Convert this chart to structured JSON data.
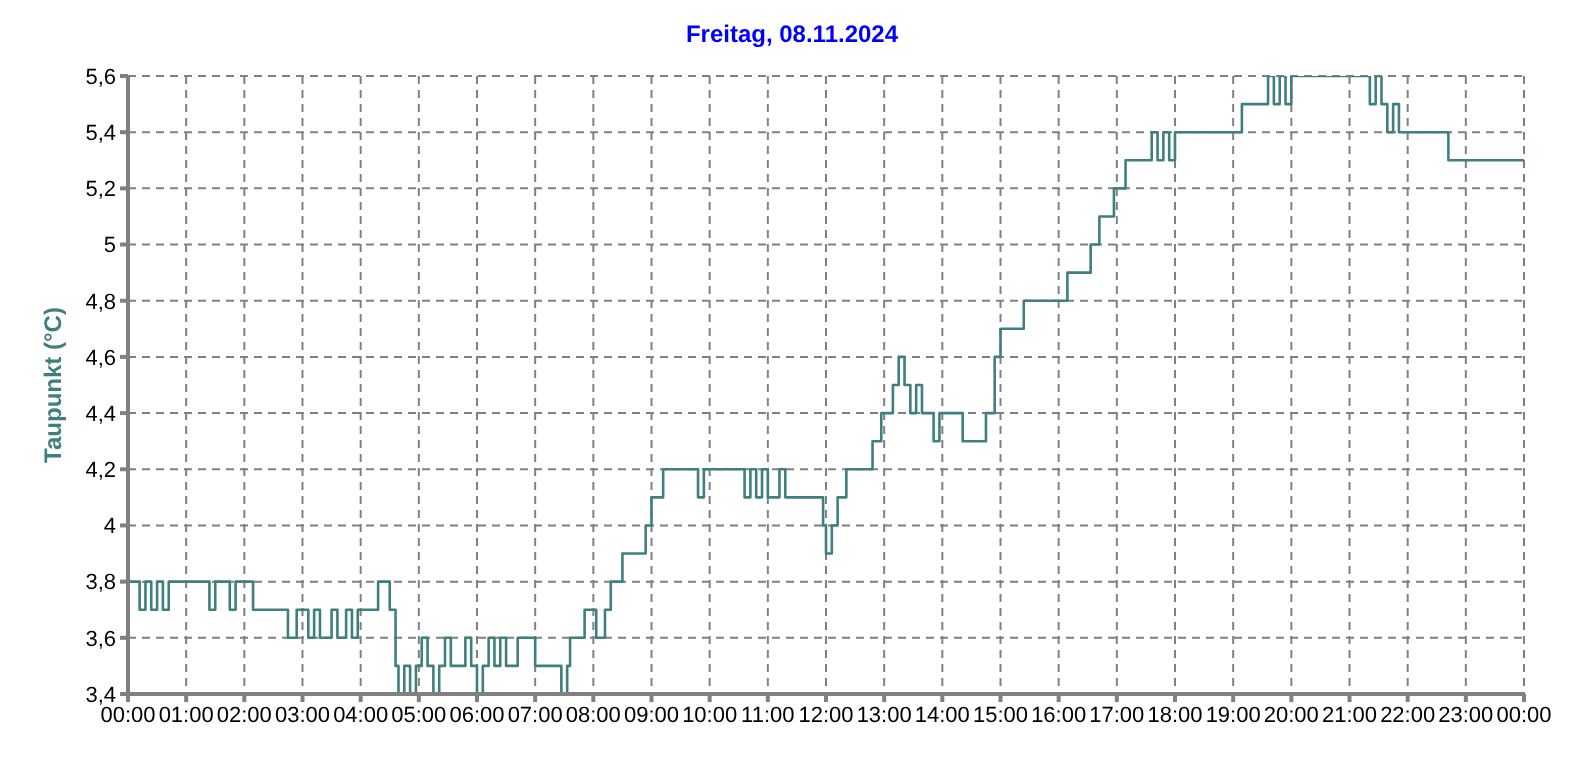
{
  "chart_data": {
    "type": "step",
    "title": "Freitag, 08.11.2024",
    "ylabel": "Taupunkt  (°C)",
    "x": [
      0,
      0.2,
      0.3,
      0.4,
      0.5,
      0.6,
      0.7,
      1.4,
      1.5,
      1.75,
      1.85,
      2.15,
      2.75,
      2.9,
      3.1,
      3.2,
      3.3,
      3.5,
      3.6,
      3.75,
      3.85,
      3.95,
      4.3,
      4.5,
      4.6,
      4.65,
      4.75,
      4.85,
      4.95,
      5.05,
      5.15,
      5.25,
      5.35,
      5.45,
      5.55,
      5.8,
      5.9,
      6.0,
      6.1,
      6.2,
      6.3,
      6.4,
      6.5,
      6.7,
      7.0,
      7.45,
      7.55,
      7.6,
      7.85,
      8.05,
      8.2,
      8.3,
      8.5,
      8.9,
      9.0,
      9.2,
      9.8,
      9.9,
      10.6,
      10.7,
      10.8,
      10.9,
      11.0,
      11.2,
      11.3,
      11.95,
      12.0,
      12.1,
      12.2,
      12.35,
      12.8,
      12.95,
      13.15,
      13.25,
      13.35,
      13.45,
      13.55,
      13.65,
      13.85,
      13.95,
      14.35,
      14.75,
      14.9,
      15.0,
      15.4,
      16.15,
      16.55,
      16.7,
      16.95,
      17.15,
      17.6,
      17.7,
      17.8,
      17.9,
      18.0,
      19.15,
      19.6,
      19.7,
      19.8,
      19.9,
      20.0,
      21.35,
      21.45,
      21.55,
      21.65,
      21.75,
      21.85,
      22.7,
      24
    ],
    "series": [
      {
        "color": "#3f7f7f",
        "values": [
          3.8,
          3.7,
          3.8,
          3.7,
          3.8,
          3.7,
          3.8,
          3.7,
          3.8,
          3.7,
          3.8,
          3.7,
          3.6,
          3.7,
          3.6,
          3.7,
          3.6,
          3.7,
          3.6,
          3.7,
          3.6,
          3.7,
          3.8,
          3.7,
          3.5,
          3.4,
          3.5,
          3.4,
          3.5,
          3.6,
          3.5,
          3.4,
          3.5,
          3.6,
          3.5,
          3.6,
          3.5,
          3.4,
          3.5,
          3.6,
          3.5,
          3.6,
          3.5,
          3.6,
          3.5,
          3.4,
          3.5,
          3.6,
          3.7,
          3.6,
          3.7,
          3.8,
          3.9,
          4.0,
          4.1,
          4.2,
          4.1,
          4.2,
          4.1,
          4.2,
          4.1,
          4.2,
          4.1,
          4.2,
          4.1,
          4.0,
          3.9,
          4.0,
          4.1,
          4.2,
          4.3,
          4.4,
          4.5,
          4.6,
          4.5,
          4.4,
          4.5,
          4.4,
          4.3,
          4.4,
          4.3,
          4.4,
          4.6,
          4.7,
          4.8,
          4.9,
          5.0,
          5.1,
          5.2,
          5.3,
          5.4,
          5.3,
          5.4,
          5.3,
          5.4,
          5.5,
          5.6,
          5.5,
          5.6,
          5.5,
          5.6,
          5.5,
          5.6,
          5.5,
          5.4,
          5.5,
          5.4,
          5.3,
          5.3
        ]
      }
    ],
    "xlim": [
      0,
      24
    ],
    "xticks": [
      {
        "value": 0,
        "label": "00:00"
      },
      {
        "value": 1,
        "label": "01:00"
      },
      {
        "value": 2,
        "label": "02:00"
      },
      {
        "value": 3,
        "label": "03:00"
      },
      {
        "value": 4,
        "label": "04:00"
      },
      {
        "value": 5,
        "label": "05:00"
      },
      {
        "value": 6,
        "label": "06:00"
      },
      {
        "value": 7,
        "label": "07:00"
      },
      {
        "value": 8,
        "label": "08:00"
      },
      {
        "value": 9,
        "label": "09:00"
      },
      {
        "value": 10,
        "label": "10:00"
      },
      {
        "value": 11,
        "label": "11:00"
      },
      {
        "value": 12,
        "label": "12:00"
      },
      {
        "value": 13,
        "label": "13:00"
      },
      {
        "value": 14,
        "label": "14:00"
      },
      {
        "value": 15,
        "label": "15:00"
      },
      {
        "value": 16,
        "label": "16:00"
      },
      {
        "value": 17,
        "label": "17:00"
      },
      {
        "value": 18,
        "label": "18:00"
      },
      {
        "value": 19,
        "label": "19:00"
      },
      {
        "value": 20,
        "label": "20:00"
      },
      {
        "value": 21,
        "label": "21:00"
      },
      {
        "value": 22,
        "label": "22:00"
      },
      {
        "value": 23,
        "label": "23:00"
      },
      {
        "value": 24,
        "label": "00:00"
      }
    ],
    "ylim": [
      3.4,
      5.6
    ],
    "yticks": [
      {
        "value": 3.4,
        "label": "3,4"
      },
      {
        "value": 3.6,
        "label": "3,6"
      },
      {
        "value": 3.8,
        "label": "3,8"
      },
      {
        "value": 4,
        "label": "4"
      },
      {
        "value": 4.2,
        "label": "4,2"
      },
      {
        "value": 4.4,
        "label": "4,4"
      },
      {
        "value": 4.6,
        "label": "4,6"
      },
      {
        "value": 4.8,
        "label": "4,8"
      },
      {
        "value": 5,
        "label": "5"
      },
      {
        "value": 5.2,
        "label": "5,2"
      },
      {
        "value": 5.4,
        "label": "5,4"
      },
      {
        "value": 5.6,
        "label": "5,6"
      }
    ],
    "grid": true,
    "line_style": "solid",
    "marker": "none"
  }
}
